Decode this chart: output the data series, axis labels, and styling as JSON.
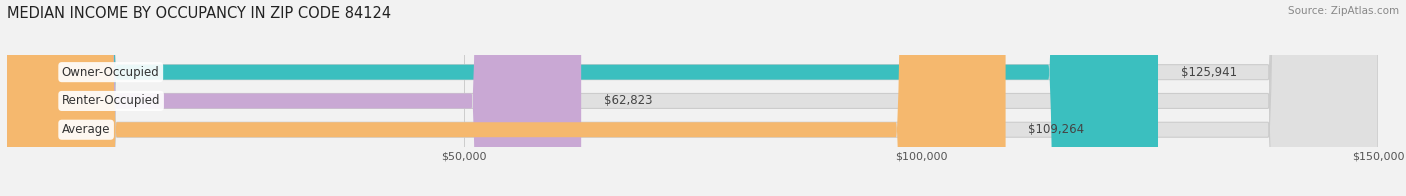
{
  "title": "MEDIAN INCOME BY OCCUPANCY IN ZIP CODE 84124",
  "source": "Source: ZipAtlas.com",
  "categories": [
    "Owner-Occupied",
    "Renter-Occupied",
    "Average"
  ],
  "values": [
    125941,
    62823,
    109264
  ],
  "bar_colors": [
    "#3bbfbf",
    "#c9a8d4",
    "#f5b86e"
  ],
  "value_labels": [
    "$125,941",
    "$62,823",
    "$109,264"
  ],
  "xlim": [
    0,
    150000
  ],
  "xticks": [
    50000,
    100000,
    150000
  ],
  "xtick_labels": [
    "$50,000",
    "$100,000",
    "$150,000"
  ],
  "background_color": "#f2f2f2",
  "bar_background_color": "#e0e0e0",
  "title_fontsize": 10.5,
  "label_fontsize": 8.5,
  "tick_fontsize": 8
}
